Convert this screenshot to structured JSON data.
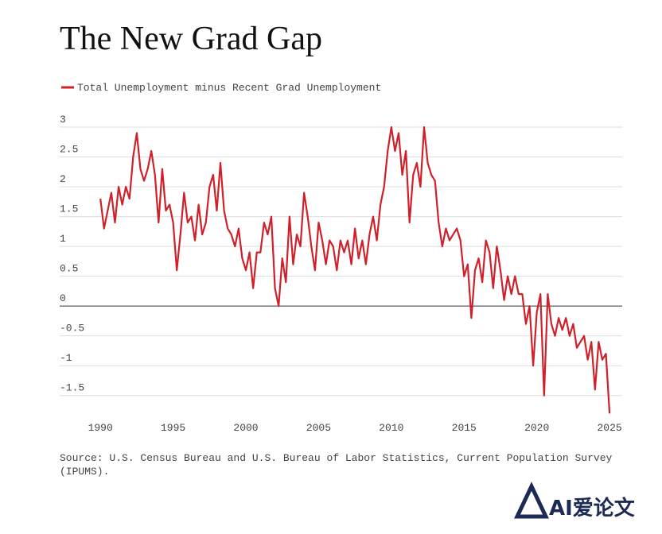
{
  "chart_data": {
    "type": "line",
    "title": "The New Grad Gap",
    "source": "Source: U.S. Census Bureau and U.S. Bureau of Labor Statistics, Current Population Survey (IPUMS).",
    "watermark": "AI爱论文",
    "x": [
      1990,
      1990.25,
      1990.5,
      1990.75,
      1991,
      1991.25,
      1991.5,
      1991.75,
      1992,
      1992.25,
      1992.5,
      1992.75,
      1993,
      1993.25,
      1993.5,
      1993.75,
      1994,
      1994.25,
      1994.5,
      1994.75,
      1995,
      1995.25,
      1995.5,
      1995.75,
      1996,
      1996.25,
      1996.5,
      1996.75,
      1997,
      1997.25,
      1997.5,
      1997.75,
      1998,
      1998.25,
      1998.5,
      1998.75,
      1999,
      1999.25,
      1999.5,
      1999.75,
      2000,
      2000.25,
      2000.5,
      2000.75,
      2001,
      2001.25,
      2001.5,
      2001.75,
      2002,
      2002.25,
      2002.5,
      2002.75,
      2003,
      2003.25,
      2003.5,
      2003.75,
      2004,
      2004.25,
      2004.5,
      2004.75,
      2005,
      2005.25,
      2005.5,
      2005.75,
      2006,
      2006.25,
      2006.5,
      2006.75,
      2007,
      2007.25,
      2007.5,
      2007.75,
      2008,
      2008.25,
      2008.5,
      2008.75,
      2009,
      2009.25,
      2009.5,
      2009.75,
      2010,
      2010.25,
      2010.5,
      2010.75,
      2011,
      2011.25,
      2011.5,
      2011.75,
      2012,
      2012.25,
      2012.5,
      2012.75,
      2013,
      2013.25,
      2013.5,
      2013.75,
      2014,
      2014.25,
      2014.5,
      2014.75,
      2015,
      2015.25,
      2015.5,
      2015.75,
      2016,
      2016.25,
      2016.5,
      2016.75,
      2017,
      2017.25,
      2017.5,
      2017.75,
      2018,
      2018.25,
      2018.5,
      2018.75,
      2019,
      2019.25,
      2019.5,
      2019.75,
      2020,
      2020.25,
      2020.5,
      2020.75,
      2021,
      2021.25,
      2021.5,
      2021.75,
      2022,
      2022.25,
      2022.5,
      2022.75,
      2023,
      2023.25,
      2023.5,
      2023.75,
      2024,
      2024.25,
      2024.5,
      2024.75,
      2025
    ],
    "series": [
      {
        "name": "Total Unemployment minus Recent Grad Unemployment",
        "color": "#d0202a",
        "values": [
          1.8,
          1.3,
          1.6,
          1.9,
          1.4,
          2.0,
          1.7,
          2.0,
          1.8,
          2.5,
          2.9,
          2.3,
          2.1,
          2.3,
          2.6,
          2.2,
          1.4,
          2.3,
          1.6,
          1.7,
          1.4,
          0.6,
          1.2,
          1.9,
          1.4,
          1.5,
          1.1,
          1.7,
          1.2,
          1.4,
          2.0,
          2.2,
          1.6,
          2.4,
          1.6,
          1.3,
          1.2,
          1.0,
          1.3,
          0.8,
          0.6,
          0.9,
          0.3,
          0.9,
          0.9,
          1.4,
          1.2,
          1.5,
          0.3,
          0.0,
          0.8,
          0.4,
          1.5,
          0.7,
          1.2,
          1.0,
          1.9,
          1.5,
          1.0,
          0.6,
          1.4,
          1.1,
          0.7,
          1.1,
          1.0,
          0.6,
          1.1,
          0.9,
          1.1,
          0.7,
          1.3,
          0.8,
          1.1,
          0.7,
          1.2,
          1.5,
          1.1,
          1.7,
          2.0,
          2.6,
          3.0,
          2.6,
          2.9,
          2.2,
          2.6,
          1.4,
          2.2,
          2.4,
          2.0,
          3.0,
          2.4,
          2.2,
          2.1,
          1.4,
          1.0,
          1.3,
          1.1,
          1.2,
          1.3,
          1.1,
          0.5,
          0.7,
          -0.2,
          0.6,
          0.8,
          0.4,
          1.1,
          0.9,
          0.3,
          1.0,
          0.6,
          0.1,
          0.5,
          0.2,
          0.5,
          0.2,
          0.2,
          -0.3,
          0.0,
          -1.0,
          -0.1,
          0.2,
          -1.5,
          0.2,
          -0.3,
          -0.5,
          -0.2,
          -0.4,
          -0.2,
          -0.5,
          -0.3,
          -0.7,
          -0.6,
          -0.5,
          -0.9,
          -0.6,
          -1.4,
          -0.6,
          -0.9,
          -0.8,
          -1.8
        ]
      }
    ],
    "xlim": [
      1987.2,
      2025.87
    ],
    "xticks": [
      1990,
      1995,
      2000,
      2005,
      2010,
      2015,
      2020,
      2025
    ],
    "ylim": [
      -1.85,
      3
    ],
    "yticks": [
      3,
      2.5,
      2,
      1.5,
      1,
      0.5,
      0,
      -0.5,
      -1,
      -1.5
    ],
    "grid": true
  }
}
